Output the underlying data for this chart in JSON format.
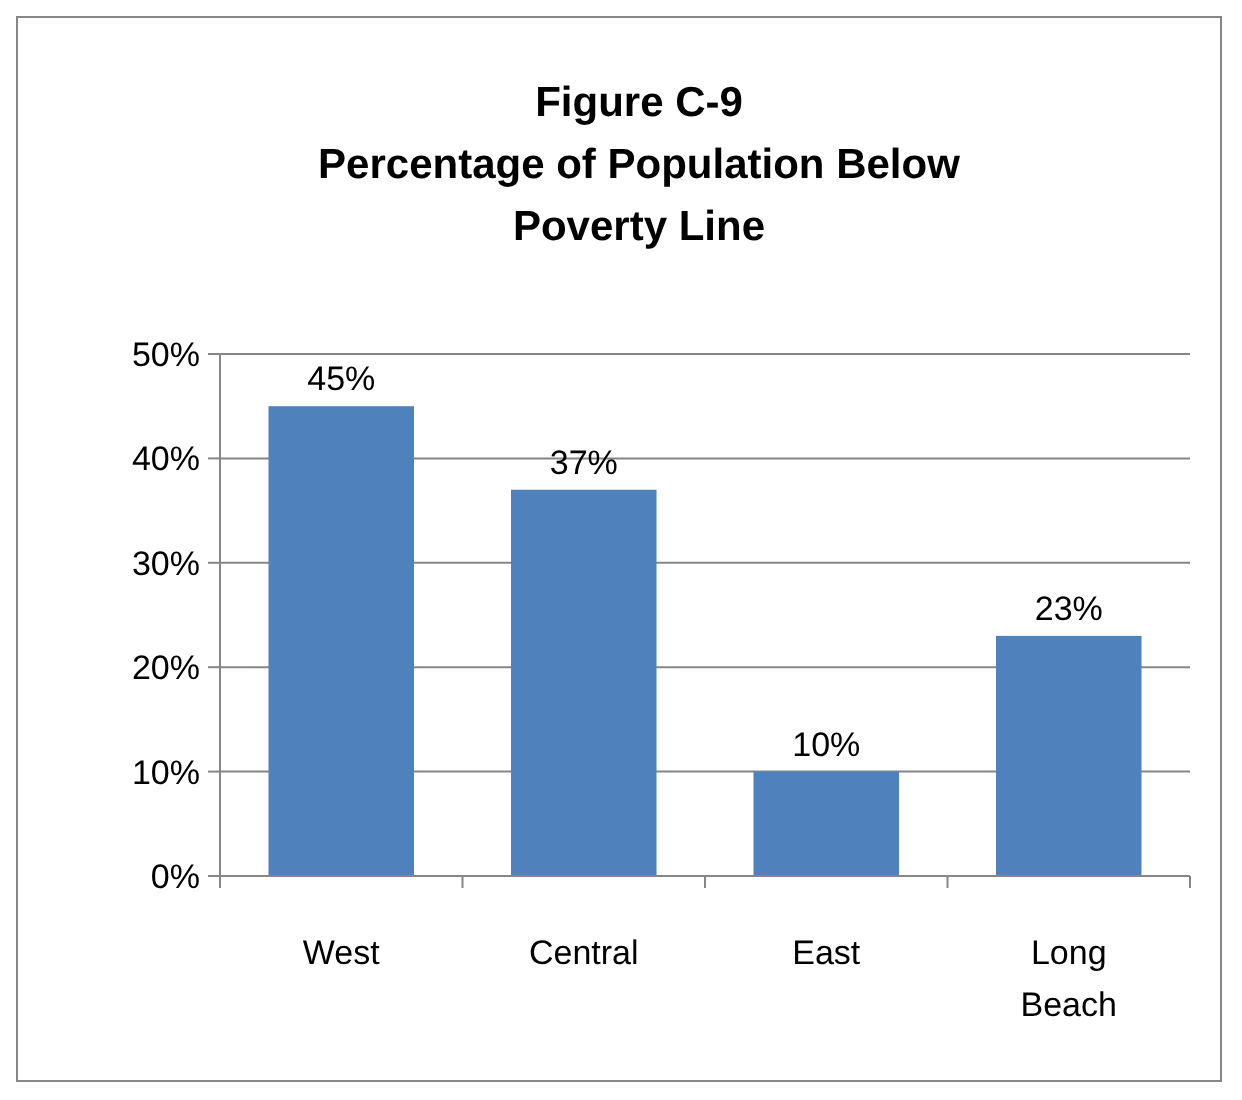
{
  "chart_data": {
    "type": "bar",
    "title": "Figure C-9\nPercentage of Population Below Poverty Line",
    "categories": [
      "West",
      "Central",
      "East",
      "Long Beach"
    ],
    "values": [
      45,
      37,
      10,
      23
    ],
    "value_labels": [
      "45%",
      "37%",
      "10%",
      "23%"
    ],
    "color": "#4f81bd",
    "ylim": [
      0,
      50
    ],
    "yticks": [
      {
        "value": 0,
        "label": "0%"
      },
      {
        "value": 10,
        "label": "10%"
      },
      {
        "value": 20,
        "label": "20%"
      },
      {
        "value": 30,
        "label": "30%"
      },
      {
        "value": 40,
        "label": "40%"
      },
      {
        "value": 50,
        "label": "50%"
      }
    ],
    "grid": "y"
  }
}
